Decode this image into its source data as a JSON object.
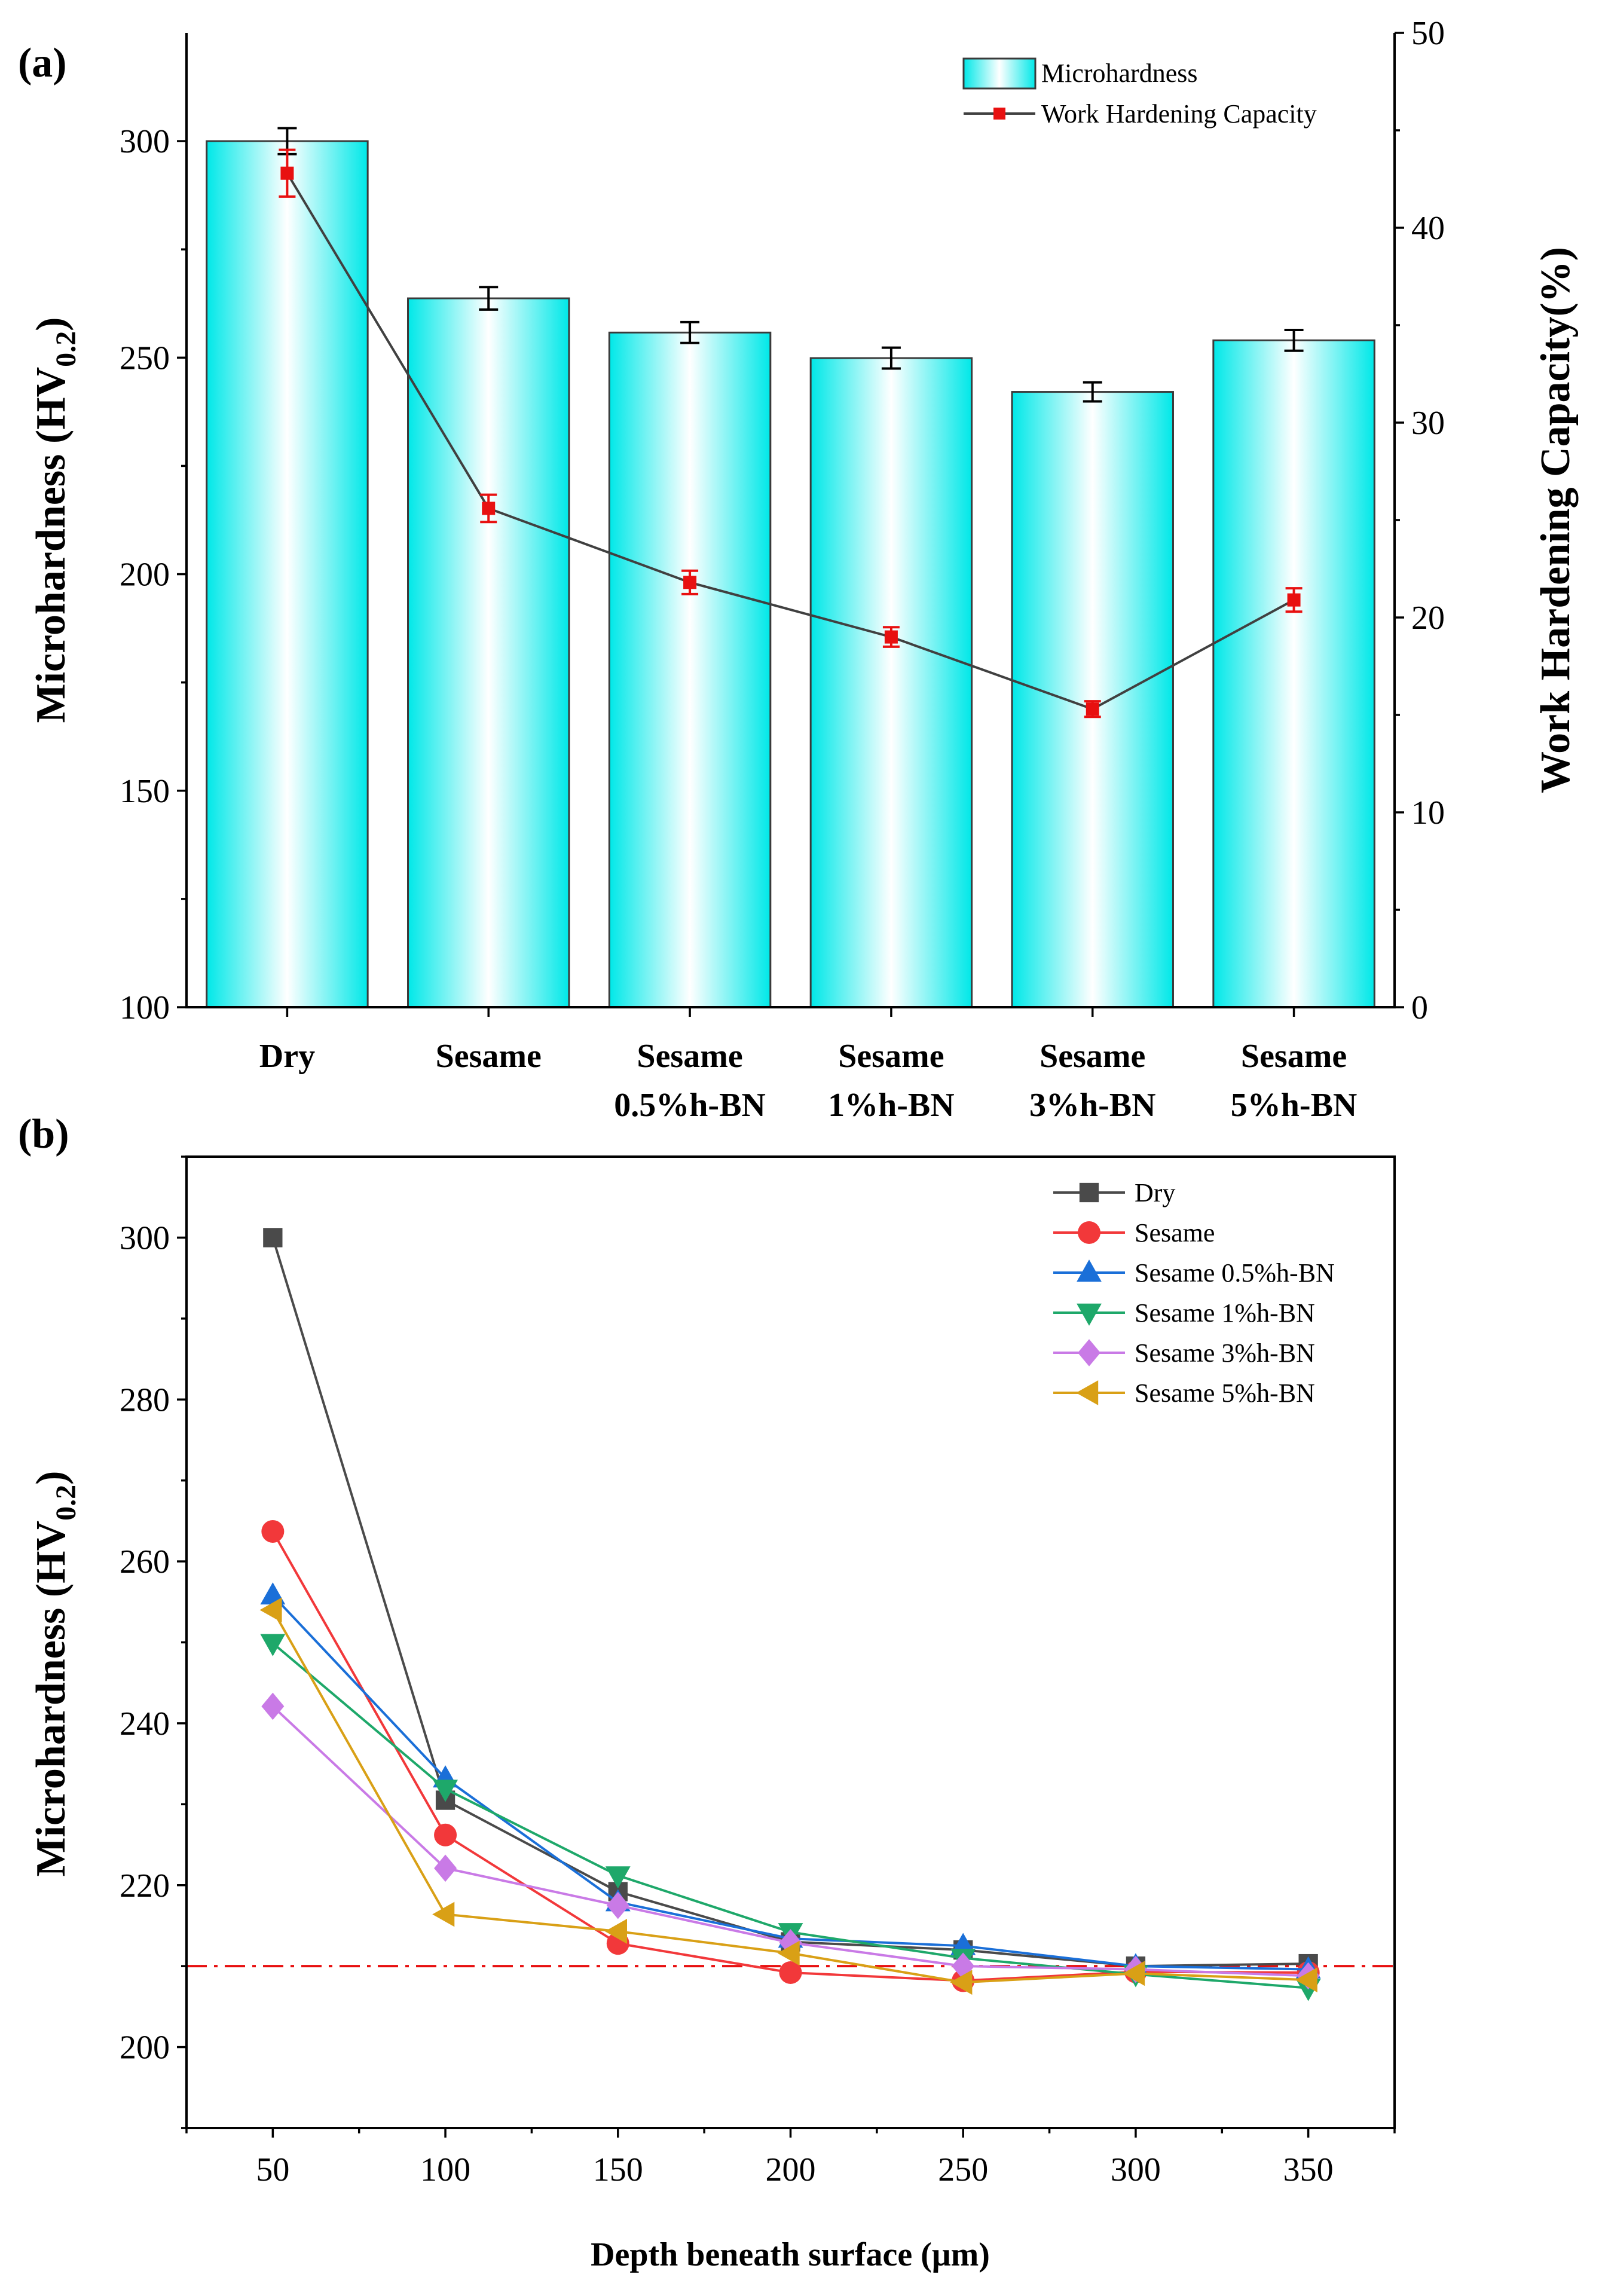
{
  "chart_data": [
    {
      "panel": "(a)",
      "type": "bar",
      "categories": [
        [
          "Dry"
        ],
        [
          "Sesame"
        ],
        [
          "Sesame",
          "0.5%h-BN"
        ],
        [
          "Sesame",
          "1%h-BN"
        ],
        [
          "Sesame",
          "3%h-BN"
        ],
        [
          "Sesame",
          "5%h-BN"
        ]
      ],
      "ylabel": {
        "main": "Microhardness (HV",
        "sub": "0.2",
        "close": ")"
      },
      "y2label": "Work Hardening Capacity(%)",
      "ylim": [
        100,
        325
      ],
      "yticks": [
        100,
        150,
        200,
        250,
        300
      ],
      "y2lim": [
        0,
        50
      ],
      "y2ticks": [
        0,
        10,
        20,
        30,
        40,
        50
      ],
      "series": [
        {
          "name": "Microhardness",
          "kind": "bar",
          "axis": "left",
          "values": [
            300,
            263.7,
            255.8,
            249.9,
            242.1,
            254
          ],
          "errors": [
            3,
            2.6,
            2.4,
            2.4,
            2.2,
            2.4
          ],
          "color": "#00e5e5"
        },
        {
          "name": "Work Hardening Capacity",
          "kind": "line",
          "axis": "right",
          "values": [
            42.8,
            25.6,
            21.8,
            19.0,
            15.3,
            20.9
          ],
          "errors": [
            1.2,
            0.7,
            0.6,
            0.5,
            0.4,
            0.6
          ],
          "color": "#404040",
          "marker_color": "#e81010"
        }
      ]
    },
    {
      "panel": "(b)",
      "type": "line",
      "xlabel": "Depth beneath surface (μm)",
      "ylabel": {
        "main": "Microhardness (HV",
        "sub": "0.2",
        "close": ")"
      },
      "x": [
        50,
        100,
        150,
        200,
        250,
        300,
        350
      ],
      "xlim": [
        25,
        375
      ],
      "xticks": [
        50,
        100,
        150,
        200,
        250,
        300,
        350
      ],
      "ylim": [
        190,
        310
      ],
      "yticks": [
        200,
        220,
        240,
        260,
        280,
        300
      ],
      "reference_line": {
        "y": 210,
        "style": "dash-dot",
        "color": "#e81010"
      },
      "series": [
        {
          "name": "Dry",
          "marker": "square",
          "color": "#4a4a4a",
          "values": [
            300,
            230.5,
            219.2,
            213.0,
            212.0,
            210.0,
            210.3
          ]
        },
        {
          "name": "Sesame",
          "marker": "circle",
          "color": "#f2383a",
          "values": [
            263.7,
            226.2,
            212.8,
            209.2,
            208.2,
            209.3,
            209.2
          ]
        },
        {
          "name": "Sesame 0.5%h-BN",
          "marker": "triangle-up",
          "color": "#1a6fd8",
          "values": [
            255.8,
            233.2,
            217.9,
            213.4,
            212.5,
            210.0,
            209.6
          ]
        },
        {
          "name": "Sesame 1%h-BN",
          "marker": "triangle-down",
          "color": "#1ea86a",
          "values": [
            249.9,
            231.9,
            221.2,
            214.2,
            211.0,
            209.0,
            207.3
          ]
        },
        {
          "name": "Sesame 3%h-BN",
          "marker": "diamond",
          "color": "#c97ae6",
          "values": [
            242.1,
            222.1,
            217.5,
            212.9,
            210.0,
            209.6,
            208.8
          ]
        },
        {
          "name": "Sesame 5%h-BN",
          "marker": "triangle-left",
          "color": "#d9a016",
          "values": [
            254.0,
            216.4,
            214.3,
            211.6,
            208.0,
            209.1,
            208.3
          ]
        }
      ]
    }
  ]
}
